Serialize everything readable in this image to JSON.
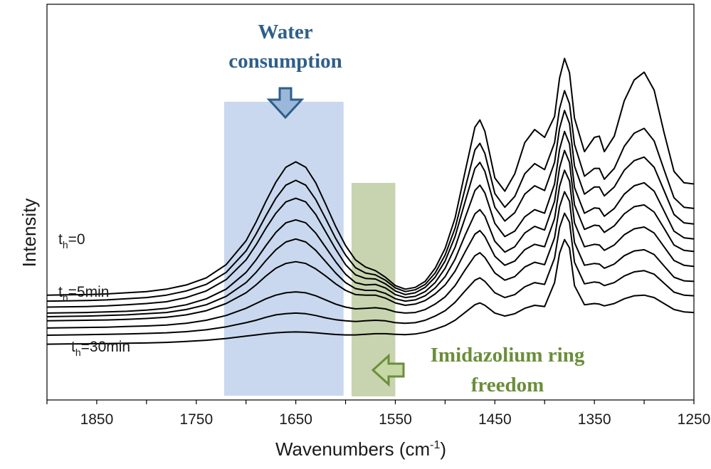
{
  "chart_data": {
    "type": "line",
    "xlabel": "Wavenumbers (cm",
    "xlabel_sup": "-1",
    "xlabel_end": ")",
    "ylabel": "Intensity",
    "xlim": [
      1900,
      1250
    ],
    "x_reversed": true,
    "x_ticks": [
      1850,
      1750,
      1650,
      1550,
      1450,
      1350,
      1250
    ],
    "y_ticks_shown": false,
    "grid": false,
    "x": [
      1900,
      1880,
      1860,
      1840,
      1820,
      1800,
      1780,
      1760,
      1740,
      1720,
      1700,
      1690,
      1680,
      1670,
      1660,
      1650,
      1640,
      1630,
      1620,
      1610,
      1600,
      1590,
      1580,
      1570,
      1560,
      1550,
      1540,
      1530,
      1520,
      1510,
      1500,
      1490,
      1480,
      1470,
      1465,
      1460,
      1450,
      1440,
      1430,
      1420,
      1410,
      1400,
      1390,
      1385,
      1380,
      1375,
      1370,
      1360,
      1350,
      1345,
      1340,
      1330,
      1320,
      1310,
      1300,
      1290,
      1280,
      1270,
      1260,
      1250
    ],
    "series": [
      {
        "values": [
          0.92,
          0.925,
          0.93,
          0.94,
          0.96,
          0.98,
          1.02,
          1.09,
          1.21,
          1.43,
          1.83,
          2.14,
          2.49,
          2.81,
          3.06,
          3.15,
          3.06,
          2.8,
          2.44,
          2.07,
          1.75,
          1.51,
          1.39,
          1.33,
          1.22,
          1.08,
          1.02,
          1.05,
          1.15,
          1.37,
          1.7,
          2.21,
          2.98,
          3.73,
          3.85,
          3.66,
          2.88,
          2.66,
          2.95,
          3.47,
          3.69,
          3.56,
          3.91,
          4.55,
          4.88,
          4.64,
          3.88,
          3.32,
          3.56,
          3.58,
          3.32,
          3.58,
          4.17,
          4.52,
          4.65,
          4.35,
          3.64,
          2.99,
          2.8,
          2.78
        ]
      },
      {
        "values": [
          0.82,
          0.825,
          0.83,
          0.84,
          0.86,
          0.88,
          0.92,
          0.99,
          1.1,
          1.3,
          1.66,
          1.94,
          2.25,
          2.54,
          2.76,
          2.84,
          2.76,
          2.52,
          2.2,
          1.87,
          1.59,
          1.38,
          1.29,
          1.26,
          1.17,
          1.04,
          0.98,
          1.01,
          1.1,
          1.29,
          1.59,
          2.04,
          2.7,
          3.35,
          3.46,
          3.29,
          2.62,
          2.39,
          2.57,
          2.95,
          3.12,
          3.02,
          3.47,
          4.04,
          4.34,
          4.12,
          3.44,
          2.91,
          3.04,
          3.04,
          2.86,
          3.04,
          3.41,
          3.63,
          3.71,
          3.5,
          3.02,
          2.55,
          2.39,
          2.37
        ]
      },
      {
        "values": [
          0.72,
          0.725,
          0.73,
          0.74,
          0.76,
          0.78,
          0.81,
          0.88,
          0.99,
          1.18,
          1.51,
          1.76,
          2.04,
          2.29,
          2.48,
          2.54,
          2.48,
          2.27,
          1.98,
          1.69,
          1.43,
          1.26,
          1.2,
          1.19,
          1.11,
          0.99,
          0.93,
          0.96,
          1.05,
          1.22,
          1.49,
          1.9,
          2.48,
          3.04,
          3.14,
          2.99,
          2.39,
          2.16,
          2.3,
          2.61,
          2.75,
          2.67,
          3.14,
          3.71,
          4.01,
          3.79,
          3.08,
          2.61,
          2.73,
          2.73,
          2.58,
          2.73,
          3.01,
          3.17,
          3.23,
          3.06,
          2.67,
          2.27,
          2.13,
          2.11
        ]
      },
      {
        "values": [
          0.62,
          0.625,
          0.63,
          0.64,
          0.65,
          0.67,
          0.7,
          0.76,
          0.86,
          1.02,
          1.3,
          1.51,
          1.75,
          1.97,
          2.13,
          2.18,
          2.13,
          1.96,
          1.72,
          1.48,
          1.27,
          1.13,
          1.09,
          1.1,
          1.04,
          0.93,
          0.88,
          0.9,
          0.98,
          1.13,
          1.37,
          1.72,
          2.21,
          2.67,
          2.76,
          2.63,
          2.12,
          1.9,
          1.99,
          2.23,
          2.35,
          2.29,
          2.78,
          3.36,
          3.66,
          3.45,
          2.72,
          2.29,
          2.38,
          2.37,
          2.24,
          2.37,
          2.61,
          2.75,
          2.8,
          2.66,
          2.33,
          1.99,
          1.88,
          1.86
        ]
      },
      {
        "values": [
          0.56,
          0.565,
          0.57,
          0.58,
          0.59,
          0.61,
          0.63,
          0.68,
          0.76,
          0.9,
          1.13,
          1.3,
          1.5,
          1.68,
          1.81,
          1.86,
          1.81,
          1.67,
          1.48,
          1.29,
          1.13,
          1.03,
          1.0,
          1.0,
          0.95,
          0.86,
          0.82,
          0.84,
          0.91,
          1.04,
          1.23,
          1.52,
          1.92,
          2.28,
          2.35,
          2.24,
          1.82,
          1.64,
          1.73,
          1.96,
          2.07,
          2.01,
          2.49,
          3.05,
          3.34,
          3.14,
          2.43,
          2.02,
          2.09,
          2.08,
          1.97,
          2.08,
          2.28,
          2.4,
          2.43,
          2.31,
          2.04,
          1.76,
          1.67,
          1.65
        ]
      },
      {
        "values": [
          0.49,
          0.495,
          0.5,
          0.505,
          0.515,
          0.53,
          0.55,
          0.59,
          0.66,
          0.78,
          0.96,
          1.09,
          1.24,
          1.37,
          1.45,
          1.48,
          1.45,
          1.36,
          1.24,
          1.11,
          1.0,
          0.93,
          0.92,
          0.92,
          0.87,
          0.79,
          0.75,
          0.77,
          0.83,
          0.94,
          1.09,
          1.32,
          1.64,
          1.94,
          2.0,
          1.9,
          1.57,
          1.42,
          1.49,
          1.68,
          1.77,
          1.73,
          2.2,
          2.74,
          3.01,
          2.83,
          2.13,
          1.73,
          1.77,
          1.76,
          1.67,
          1.76,
          1.93,
          2.03,
          2.06,
          1.96,
          1.73,
          1.5,
          1.42,
          1.4
        ]
      },
      {
        "values": [
          0.37,
          0.375,
          0.38,
          0.385,
          0.395,
          0.405,
          0.42,
          0.45,
          0.5,
          0.58,
          0.7,
          0.78,
          0.86,
          0.92,
          0.96,
          0.975,
          0.96,
          0.91,
          0.84,
          0.77,
          0.72,
          0.69,
          0.7,
          0.71,
          0.69,
          0.64,
          0.62,
          0.63,
          0.68,
          0.77,
          0.89,
          1.08,
          1.34,
          1.58,
          1.63,
          1.55,
          1.29,
          1.17,
          1.23,
          1.39,
          1.47,
          1.43,
          1.88,
          2.4,
          2.65,
          2.49,
          1.8,
          1.42,
          1.45,
          1.44,
          1.37,
          1.44,
          1.58,
          1.66,
          1.68,
          1.6,
          1.41,
          1.22,
          1.16,
          1.15
        ]
      },
      {
        "values": [
          0.25,
          0.255,
          0.26,
          0.265,
          0.27,
          0.28,
          0.29,
          0.31,
          0.34,
          0.39,
          0.46,
          0.5,
          0.55,
          0.59,
          0.61,
          0.62,
          0.61,
          0.58,
          0.54,
          0.51,
          0.49,
          0.48,
          0.49,
          0.5,
          0.49,
          0.46,
          0.45,
          0.46,
          0.5,
          0.57,
          0.66,
          0.8,
          0.99,
          1.17,
          1.21,
          1.15,
          0.96,
          0.88,
          0.93,
          1.06,
          1.13,
          1.1,
          1.54,
          2.05,
          2.29,
          2.14,
          1.47,
          1.11,
          1.14,
          1.13,
          1.08,
          1.13,
          1.24,
          1.31,
          1.33,
          1.27,
          1.12,
          0.97,
          0.92,
          0.91
        ]
      },
      {
        "values": [
          0.1,
          0.103,
          0.106,
          0.11,
          0.115,
          0.12,
          0.13,
          0.145,
          0.165,
          0.195,
          0.235,
          0.255,
          0.275,
          0.29,
          0.3,
          0.305,
          0.3,
          0.29,
          0.275,
          0.262,
          0.255,
          0.255,
          0.265,
          0.275,
          0.275,
          0.265,
          0.26,
          0.27,
          0.3,
          0.35,
          0.41,
          0.5,
          0.63,
          0.76,
          0.79,
          0.75,
          0.62,
          0.57,
          0.61,
          0.7,
          0.75,
          0.73,
          1.13,
          1.62,
          1.85,
          1.71,
          1.08,
          0.76,
          0.78,
          0.77,
          0.74,
          0.78,
          0.86,
          0.91,
          0.92,
          0.88,
          0.78,
          0.68,
          0.64,
          0.63
        ]
      }
    ],
    "series_labels": [
      {
        "prefix": "t",
        "sub": "h",
        "suffix": "=0",
        "series_index": 0
      },
      {
        "prefix": "t",
        "sub": "h",
        "suffix": "=5min",
        "series_index": 5
      },
      {
        "prefix": "t",
        "sub": "h",
        "suffix": "=30min",
        "series_index": 8
      }
    ],
    "highlight_regions": [
      {
        "x_range": [
          1722,
          1602
        ],
        "color": "#b4c9e7",
        "opacity": 0.72
      },
      {
        "x_range": [
          1594,
          1550
        ],
        "color": "#b3c390",
        "opacity": 0.72
      }
    ],
    "annotations": [
      {
        "text_lines": [
          "Water",
          "consumption"
        ],
        "color": "#2e5f8a",
        "arrow": "down",
        "arrow_color": "#2e5f8a",
        "arrow_fill": "#9bb7d9"
      },
      {
        "text_lines": [
          "Imidazolium ring",
          "freedom"
        ],
        "color": "#6b8e3a",
        "arrow": "left",
        "arrow_color": "#6b8e3a",
        "arrow_fill": "#c6d8a6"
      }
    ]
  }
}
